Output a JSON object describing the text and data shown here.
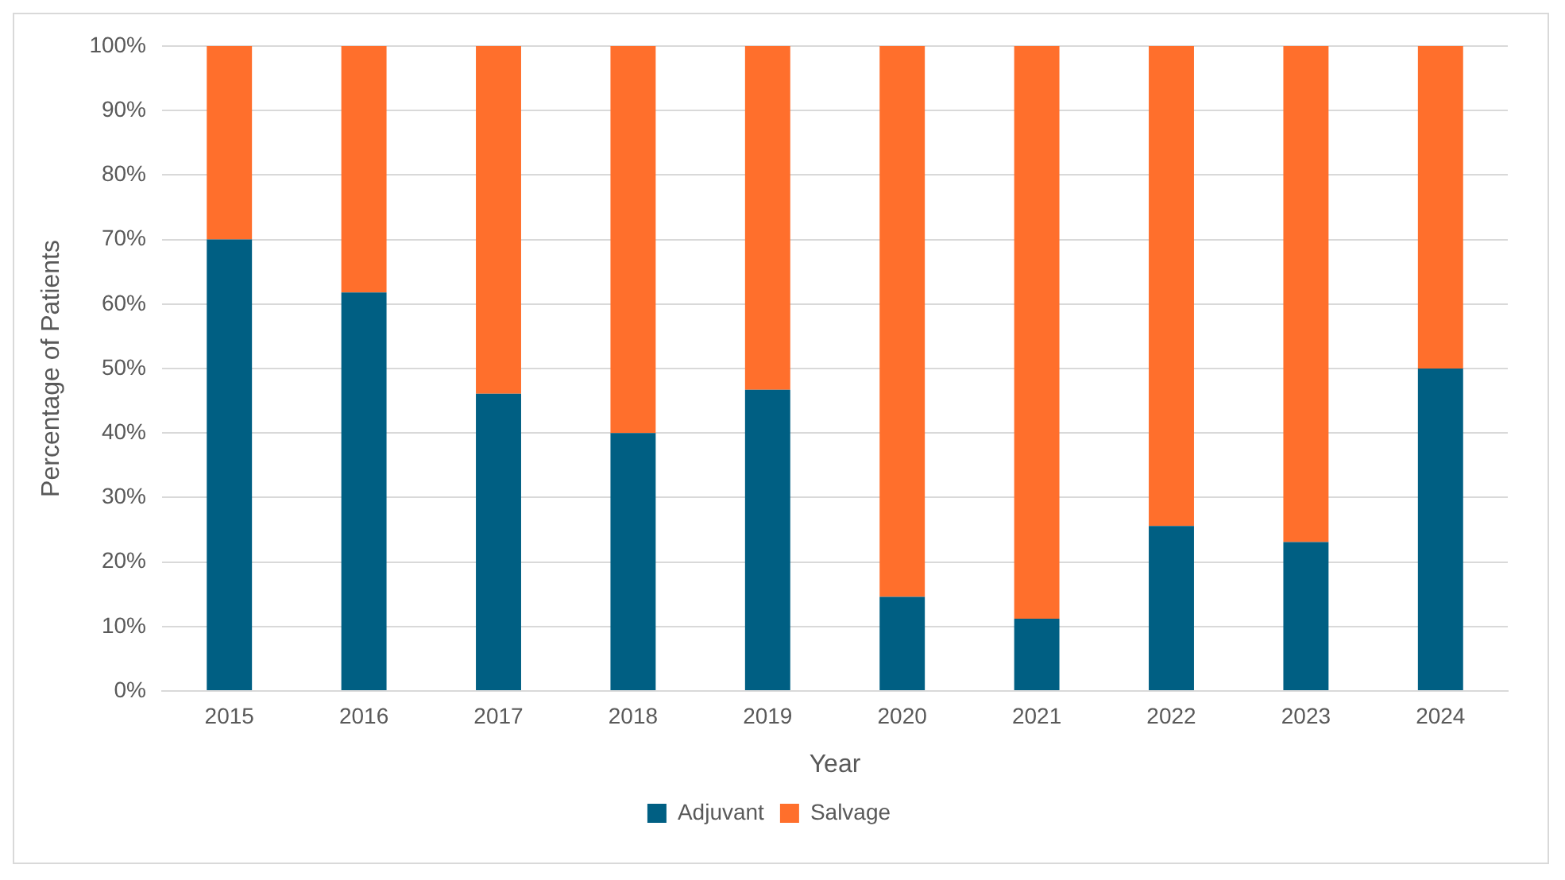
{
  "chart_data": {
    "type": "bar",
    "stacked": true,
    "xlabel": "Year",
    "ylabel": "Percentage of Patients",
    "categories": [
      "2015",
      "2016",
      "2017",
      "2018",
      "2019",
      "2020",
      "2021",
      "2022",
      "2023",
      "2024"
    ],
    "series": [
      {
        "name": "Adjuvant",
        "color": "#005f83",
        "values": [
          70,
          61.8,
          46.1,
          40,
          46.7,
          14.6,
          11.2,
          25.6,
          23.1,
          50
        ]
      },
      {
        "name": "Salvage",
        "color": "#ff6f2c",
        "values": [
          30,
          38.2,
          53.9,
          60,
          53.3,
          85.4,
          88.8,
          74.4,
          76.9,
          50
        ]
      }
    ],
    "ylim": [
      0,
      100
    ],
    "yticks": [
      {
        "value": 0,
        "label": "0%"
      },
      {
        "value": 10,
        "label": "10%"
      },
      {
        "value": 20,
        "label": "20%"
      },
      {
        "value": 30,
        "label": "30%"
      },
      {
        "value": 40,
        "label": "40%"
      },
      {
        "value": 50,
        "label": "50%"
      },
      {
        "value": 60,
        "label": "60%"
      },
      {
        "value": 70,
        "label": "70%"
      },
      {
        "value": 80,
        "label": "80%"
      },
      {
        "value": 90,
        "label": "90%"
      },
      {
        "value": 100,
        "label": "100%"
      }
    ],
    "grid": "y",
    "legend": "bottom"
  }
}
